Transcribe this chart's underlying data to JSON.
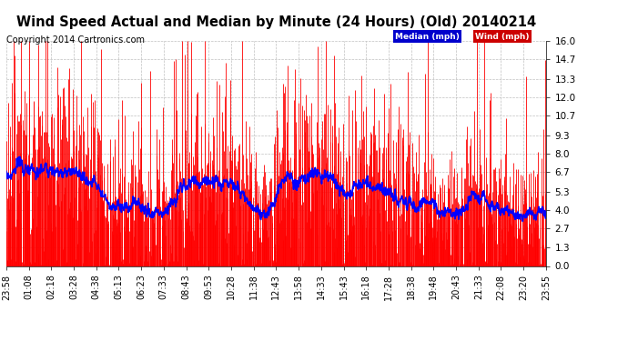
{
  "title": "Wind Speed Actual and Median by Minute (24 Hours) (Old) 20140214",
  "copyright": "Copyright 2014 Cartronics.com",
  "yticks": [
    0.0,
    1.3,
    2.7,
    4.0,
    5.3,
    6.7,
    8.0,
    9.3,
    10.7,
    12.0,
    13.3,
    14.7,
    16.0
  ],
  "ylim": [
    0.0,
    16.0
  ],
  "xlim": [
    0,
    1440
  ],
  "background_color": "#ffffff",
  "grid_color": "#b0b0b0",
  "wind_color": "#ff0000",
  "median_color": "#0000ff",
  "legend_median_bg": "#0000cc",
  "legend_wind_bg": "#cc0000",
  "legend_text_color": "#ffffff",
  "title_fontsize": 10.5,
  "copyright_fontsize": 7,
  "tick_fontsize": 7.5,
  "xtick_labels": [
    "23:58",
    "01:08",
    "02:18",
    "03:28",
    "04:38",
    "05:13",
    "06:23",
    "07:33",
    "08:43",
    "09:53",
    "10:28",
    "11:38",
    "12:43",
    "13:58",
    "14:33",
    "15:43",
    "16:18",
    "17:28",
    "18:38",
    "19:48",
    "20:43",
    "21:33",
    "22:08",
    "23:20",
    "23:55"
  ],
  "n_minutes": 1440,
  "seed": 42
}
